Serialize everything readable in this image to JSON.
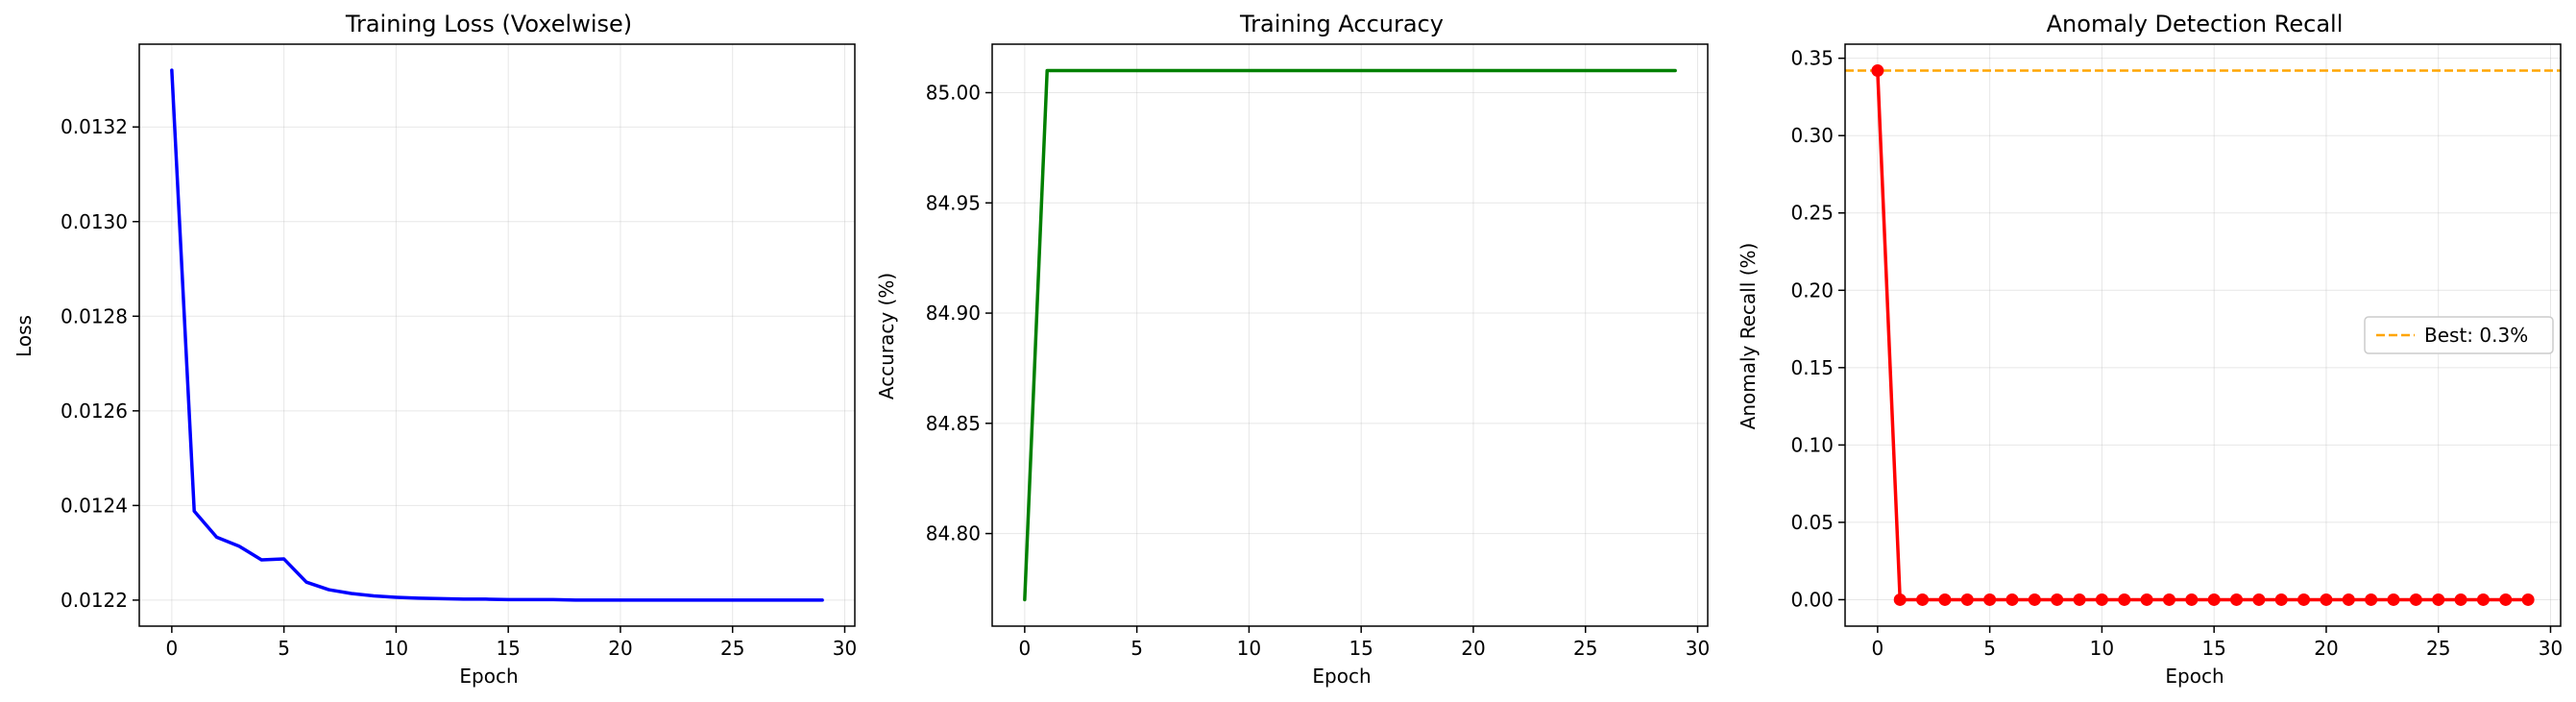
{
  "chart_data": [
    {
      "type": "line",
      "title": "Training Loss (Voxelwise)",
      "xlabel": "Epoch",
      "ylabel": "Loss",
      "xlim": [
        -1.45,
        30.45
      ],
      "ylim": [
        0.012145,
        0.013375
      ],
      "xticks": [
        0,
        5,
        10,
        15,
        20,
        25,
        30
      ],
      "yticks": [
        0.0122,
        0.0124,
        0.0126,
        0.0128,
        0.013,
        0.0132
      ],
      "ytick_labels": [
        "0.0122",
        "0.0124",
        "0.0126",
        "0.0128",
        "0.0130",
        "0.0132"
      ],
      "grid": true,
      "series": [
        {
          "color": "#0000ff",
          "marker": "none",
          "x": [
            0,
            1,
            2,
            3,
            4,
            5,
            6,
            7,
            8,
            9,
            10,
            11,
            12,
            13,
            14,
            15,
            16,
            17,
            18,
            19,
            20,
            21,
            22,
            23,
            24,
            25,
            26,
            27,
            28,
            29
          ],
          "y": [
            0.01332,
            0.012388,
            0.012333,
            0.012314,
            0.012285,
            0.012287,
            0.012238,
            0.012222,
            0.012214,
            0.012209,
            0.012206,
            0.012204,
            0.012203,
            0.012202,
            0.012202,
            0.012201,
            0.012201,
            0.012201,
            0.0122,
            0.0122,
            0.0122,
            0.0122,
            0.0122,
            0.0122,
            0.0122,
            0.0122,
            0.0122,
            0.0122,
            0.0122,
            0.0122
          ]
        }
      ]
    },
    {
      "type": "line",
      "title": "Training Accuracy",
      "xlabel": "Epoch",
      "ylabel": "Accuracy (%)",
      "xlim": [
        -1.45,
        30.45
      ],
      "ylim": [
        84.758,
        85.022
      ],
      "xticks": [
        0,
        5,
        10,
        15,
        20,
        25,
        30
      ],
      "yticks": [
        84.8,
        84.85,
        84.9,
        84.95,
        85.0
      ],
      "ytick_labels": [
        "84.80",
        "84.85",
        "84.90",
        "84.95",
        "85.00"
      ],
      "grid": true,
      "series": [
        {
          "color": "#008000",
          "marker": "none",
          "x": [
            0,
            1,
            2,
            3,
            4,
            5,
            6,
            7,
            8,
            9,
            10,
            11,
            12,
            13,
            14,
            15,
            16,
            17,
            18,
            19,
            20,
            21,
            22,
            23,
            24,
            25,
            26,
            27,
            28,
            29
          ],
          "y": [
            84.77,
            85.01,
            85.01,
            85.01,
            85.01,
            85.01,
            85.01,
            85.01,
            85.01,
            85.01,
            85.01,
            85.01,
            85.01,
            85.01,
            85.01,
            85.01,
            85.01,
            85.01,
            85.01,
            85.01,
            85.01,
            85.01,
            85.01,
            85.01,
            85.01,
            85.01,
            85.01,
            85.01,
            85.01,
            85.01
          ]
        }
      ]
    },
    {
      "type": "line",
      "title": "Anomaly Detection Recall",
      "xlabel": "Epoch",
      "ylabel": "Anomaly Recall (%)",
      "xlim": [
        -1.45,
        30.45
      ],
      "ylim": [
        -0.0171,
        0.3591
      ],
      "xticks": [
        0,
        5,
        10,
        15,
        20,
        25,
        30
      ],
      "yticks": [
        0,
        0.05,
        0.1,
        0.15,
        0.2,
        0.25,
        0.3,
        0.35
      ],
      "ytick_labels": [
        "0.00",
        "0.05",
        "0.10",
        "0.15",
        "0.20",
        "0.25",
        "0.30",
        "0.35"
      ],
      "grid": true,
      "series": [
        {
          "color": "#ff0000",
          "marker": "circle",
          "x": [
            0,
            1,
            2,
            3,
            4,
            5,
            6,
            7,
            8,
            9,
            10,
            11,
            12,
            13,
            14,
            15,
            16,
            17,
            18,
            19,
            20,
            21,
            22,
            23,
            24,
            25,
            26,
            27,
            28,
            29
          ],
          "y": [
            0.342,
            0,
            0,
            0,
            0,
            0,
            0,
            0,
            0,
            0,
            0,
            0,
            0,
            0,
            0,
            0,
            0,
            0,
            0,
            0,
            0,
            0,
            0,
            0,
            0,
            0,
            0,
            0,
            0,
            0
          ]
        }
      ],
      "hlines": [
        {
          "y": 0.342,
          "color": "#ffa500",
          "style": "dashed",
          "label": "Best: 0.3%"
        }
      ],
      "legend": {
        "placement": "center-right",
        "entries": [
          "Best: 0.3%"
        ]
      }
    }
  ]
}
